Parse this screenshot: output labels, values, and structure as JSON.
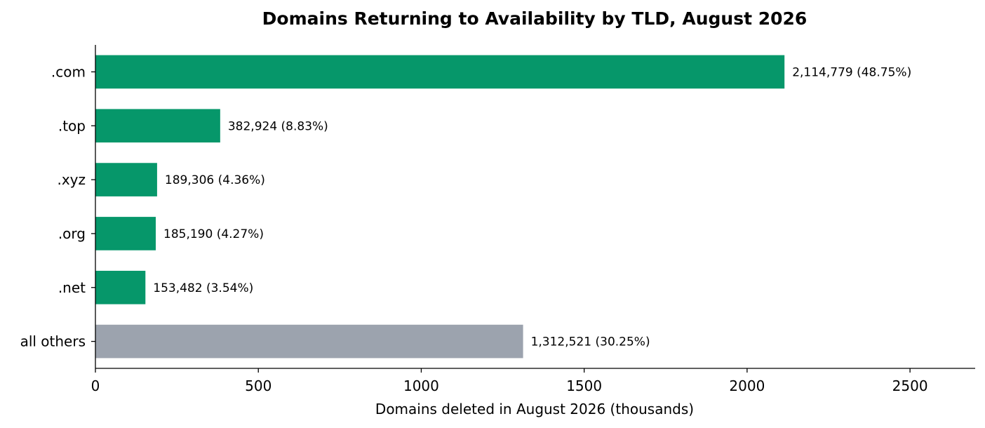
{
  "chart_data": {
    "type": "bar",
    "orientation": "horizontal",
    "title": "Domains Returning to Availability by TLD, August 2026",
    "xlabel": "Domains deleted in August 2026 (thousands)",
    "ylabel": "",
    "xlim": [
      0,
      2700
    ],
    "xticks": [
      0,
      500,
      1000,
      1500,
      2000,
      2500
    ],
    "xtick_labels": [
      "0",
      "500",
      "1000",
      "1500",
      "2000",
      "2500"
    ],
    "categories": [
      ".com",
      ".top",
      ".xyz",
      ".org",
      ".net",
      "all others"
    ],
    "values": [
      2114.779,
      382.924,
      189.306,
      185.19,
      153.482,
      1312.521
    ],
    "data_labels": [
      "2,114,779  (48.75%)",
      "382,924  (8.83%)",
      "189,306  (4.36%)",
      "185,190  (4.27%)",
      "153,482  (3.54%)",
      "1,312,521  (30.25%)"
    ],
    "colors": [
      "#06976a",
      "#06976a",
      "#06976a",
      "#06976a",
      "#06976a",
      "#9ca3ae"
    ],
    "grid": false,
    "legend": "none"
  }
}
